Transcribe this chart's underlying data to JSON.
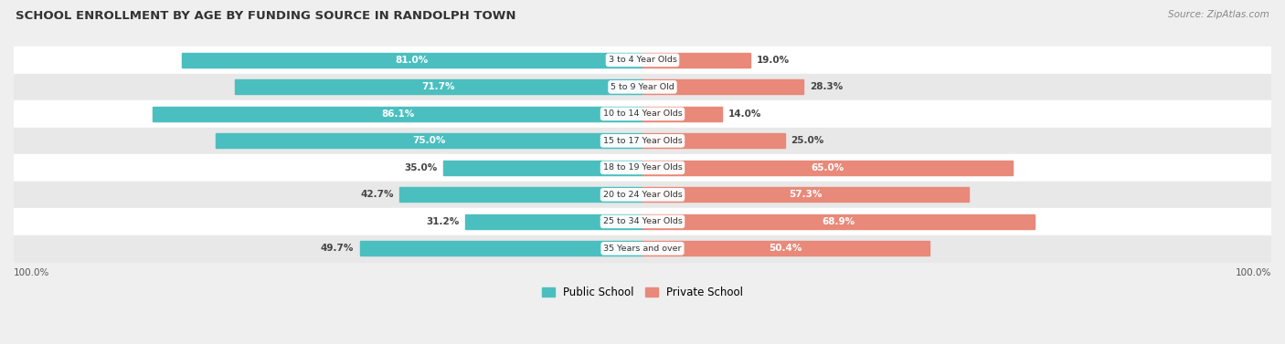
{
  "title": "SCHOOL ENROLLMENT BY AGE BY FUNDING SOURCE IN RANDOLPH TOWN",
  "source": "Source: ZipAtlas.com",
  "categories": [
    "3 to 4 Year Olds",
    "5 to 9 Year Old",
    "10 to 14 Year Olds",
    "15 to 17 Year Olds",
    "18 to 19 Year Olds",
    "20 to 24 Year Olds",
    "25 to 34 Year Olds",
    "35 Years and over"
  ],
  "public_values": [
    81.0,
    71.7,
    86.1,
    75.0,
    35.0,
    42.7,
    31.2,
    49.7
  ],
  "private_values": [
    19.0,
    28.3,
    14.0,
    25.0,
    65.0,
    57.3,
    68.9,
    50.4
  ],
  "public_color": "#4BBFBF",
  "private_color": "#E8897A",
  "public_label": "Public School",
  "private_label": "Private School",
  "bg_color": "#EFEFEF",
  "row_bg_even": "#FFFFFF",
  "row_bg_odd": "#E8E8E8",
  "threshold_dark": 50,
  "left_axis_label": "100.0%",
  "right_axis_label": "100.0%"
}
